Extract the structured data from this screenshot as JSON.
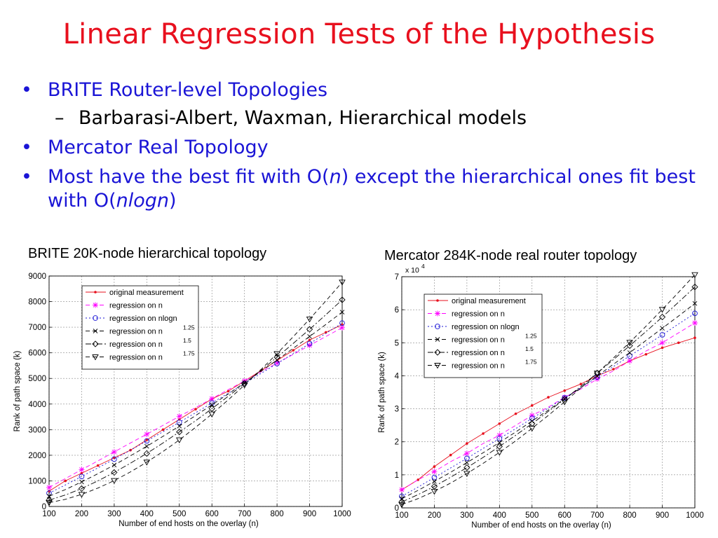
{
  "slide": {
    "title": "Linear Regression Tests of the Hypothesis",
    "bullet1": "BRITE Router-level Topologies",
    "sub1": "Barbarasi-Albert, Waxman, Hierarchical models",
    "bullet2": "Mercator Real Topology",
    "bullet3_a": "Most have the best fit with O(",
    "bullet3_n": "n",
    "bullet3_b": ") except the hierarchical ones fit best with O(",
    "bullet3_nlogn": "nlogn",
    "bullet3_c": ")",
    "bullet_mark": "•",
    "dash_mark": "–"
  },
  "chart_data": [
    {
      "type": "line",
      "title": "BRITE 20K-node hierarchical topology",
      "xlabel": "Number of end hosts on the overlay (n)",
      "ylabel": "Rank of path space (k)",
      "xlim": [
        100,
        1000
      ],
      "ylim": [
        0,
        9000
      ],
      "xticks": [
        100,
        200,
        300,
        400,
        500,
        600,
        700,
        800,
        900,
        1000
      ],
      "yticks": [
        0,
        1000,
        2000,
        3000,
        4000,
        5000,
        6000,
        7000,
        8000,
        9000
      ],
      "yexp": "",
      "grid": true,
      "legend_position": "top-left",
      "x": [
        100,
        150,
        200,
        250,
        300,
        350,
        400,
        450,
        500,
        550,
        600,
        650,
        700,
        750,
        800,
        850,
        900,
        950,
        1000
      ],
      "series": [
        {
          "name": "original measurement",
          "color": "#e8101e",
          "dash": "",
          "marker": "dot",
          "values": [
            600,
            1000,
            1300,
            1600,
            1900,
            2200,
            2600,
            3000,
            3400,
            3800,
            4200,
            4500,
            4900,
            5300,
            5700,
            6100,
            6500,
            6800,
            7100
          ]
        },
        {
          "name": "regression on n",
          "color": "#ff00ff",
          "dash": "6,4",
          "marker": "star",
          "values": [
            740,
            1090,
            1440,
            1780,
            2130,
            2480,
            2820,
            3170,
            3520,
            3860,
            4210,
            4560,
            4900,
            5250,
            5600,
            5940,
            6290,
            6640,
            6980
          ]
        },
        {
          "name": "regression on nlogn",
          "color": "#1a14d6",
          "dash": "2,3",
          "marker": "circle",
          "values": [
            520,
            840,
            1170,
            1510,
            1850,
            2200,
            2560,
            2920,
            3290,
            3660,
            4040,
            4420,
            4800,
            5190,
            5580,
            5970,
            6360,
            6760,
            7160
          ]
        },
        {
          "name": "regression on n",
          "exponent": "1.25",
          "color": "#000000",
          "dash": "6,4",
          "marker": "x",
          "values": [
            400,
            660,
            960,
            1280,
            1620,
            1980,
            2350,
            2740,
            3140,
            3550,
            3970,
            4390,
            4830,
            5270,
            5720,
            6180,
            6640,
            7110,
            7590
          ]
        },
        {
          "name": "regression on n",
          "exponent": "1.5",
          "color": "#000000",
          "dash": "8,3,2,3",
          "marker": "diamond",
          "values": [
            250,
            450,
            700,
            1000,
            1330,
            1690,
            2070,
            2480,
            2910,
            3350,
            3820,
            4300,
            4800,
            5310,
            5830,
            6370,
            6920,
            7490,
            8070
          ]
        },
        {
          "name": "regression on n",
          "exponent": "1.75",
          "color": "#000000",
          "dash": "6,4",
          "marker": "triangle",
          "values": [
            150,
            280,
            470,
            720,
            1010,
            1350,
            1730,
            2150,
            2600,
            3090,
            3610,
            4160,
            4740,
            5340,
            5970,
            6630,
            7320,
            8030,
            8760
          ]
        }
      ]
    },
    {
      "type": "line",
      "title": "Mercator 284K-node real router topology",
      "xlabel": "Number of end hosts on the overlay (n)",
      "ylabel": "Rank of path space (k)",
      "xlim": [
        100,
        1000
      ],
      "ylim": [
        0,
        7
      ],
      "xticks": [
        100,
        200,
        300,
        400,
        500,
        600,
        700,
        800,
        900,
        1000
      ],
      "yticks": [
        0,
        1,
        2,
        3,
        4,
        5,
        6,
        7
      ],
      "yexp": "x 10",
      "yexp_power": "4",
      "grid": true,
      "legend_position": "top-left",
      "x": [
        100,
        150,
        200,
        250,
        300,
        350,
        400,
        450,
        500,
        550,
        600,
        650,
        700,
        750,
        800,
        850,
        900,
        950,
        1000
      ],
      "series": [
        {
          "name": "original measurement",
          "color": "#e8101e",
          "dash": "",
          "marker": "dot",
          "values": [
            0.55,
            0.85,
            1.25,
            1.6,
            1.95,
            2.25,
            2.55,
            2.85,
            3.1,
            3.35,
            3.55,
            3.75,
            4.0,
            4.2,
            4.45,
            4.65,
            4.85,
            5.0,
            5.15
          ]
        },
        {
          "name": "regression on n",
          "color": "#ff00ff",
          "dash": "6,4",
          "marker": "star",
          "values": [
            0.55,
            0.85,
            1.1,
            1.4,
            1.65,
            1.95,
            2.2,
            2.5,
            2.8,
            3.05,
            3.35,
            3.6,
            3.9,
            4.15,
            4.45,
            4.75,
            5.0,
            5.3,
            5.6
          ]
        },
        {
          "name": "regression on nlogn",
          "color": "#1a14d6",
          "dash": "2,3",
          "marker": "circle",
          "values": [
            0.35,
            0.63,
            0.92,
            1.21,
            1.5,
            1.8,
            2.1,
            2.4,
            2.71,
            3.02,
            3.33,
            3.64,
            3.96,
            4.28,
            4.6,
            4.92,
            5.24,
            5.57,
            5.89
          ]
        },
        {
          "name": "regression on n",
          "exponent": "1.25",
          "color": "#000000",
          "dash": "6,4",
          "marker": "x",
          "values": [
            0.28,
            0.53,
            0.8,
            1.08,
            1.37,
            1.67,
            1.98,
            2.3,
            2.63,
            2.96,
            3.3,
            3.64,
            3.99,
            4.35,
            4.7,
            5.07,
            5.44,
            5.81,
            6.19
          ]
        },
        {
          "name": "regression on n",
          "exponent": "1.5",
          "color": "#000000",
          "dash": "8,3,2,3",
          "marker": "diamond",
          "values": [
            0.18,
            0.4,
            0.65,
            0.93,
            1.22,
            1.53,
            1.86,
            2.2,
            2.55,
            2.92,
            3.29,
            3.68,
            4.08,
            4.49,
            4.91,
            5.34,
            5.78,
            6.23,
            6.69
          ]
        },
        {
          "name": "regression on n",
          "exponent": "1.75",
          "color": "#000000",
          "dash": "6,4",
          "marker": "triangle",
          "values": [
            0.1,
            0.28,
            0.5,
            0.75,
            1.04,
            1.35,
            1.68,
            2.03,
            2.41,
            2.8,
            3.21,
            3.63,
            4.08,
            4.54,
            5.01,
            5.5,
            6.01,
            6.53,
            7.06
          ]
        }
      ]
    }
  ]
}
